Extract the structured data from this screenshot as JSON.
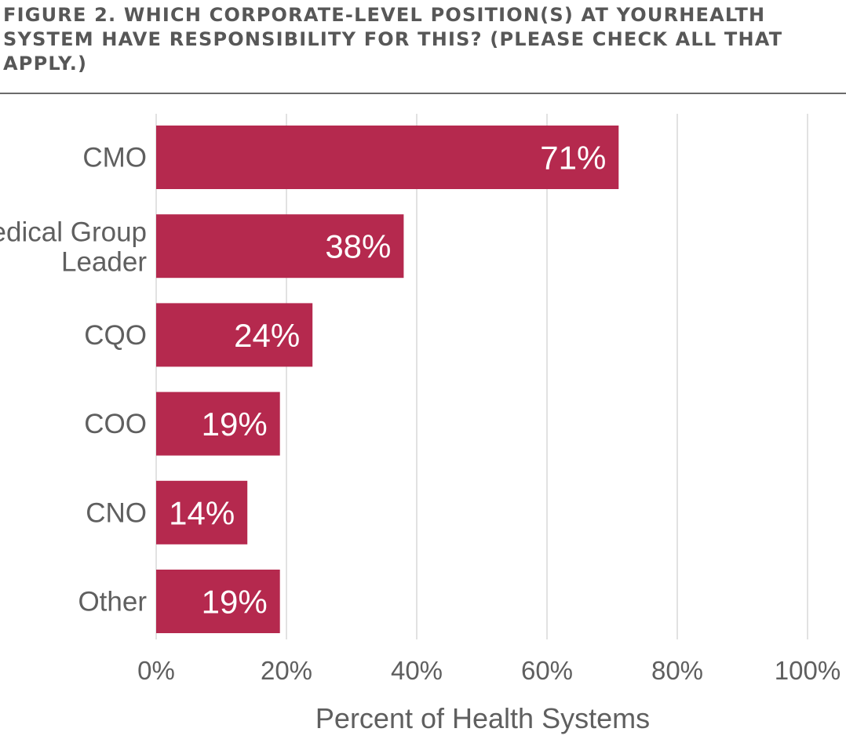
{
  "title": "Figure 2. Which corporate-level position(s) at yourhealth system have responsibility for this? (Please check all that apply.)",
  "chart_data": {
    "type": "bar",
    "orientation": "horizontal",
    "categories": [
      "CMO",
      "Medical Group Leader",
      "CQO",
      "COO",
      "CNO",
      "Other"
    ],
    "values": [
      71,
      38,
      24,
      19,
      14,
      19
    ],
    "value_labels": [
      "71%",
      "38%",
      "24%",
      "19%",
      "14%",
      "19%"
    ],
    "xlabel": "Percent of Health Systems",
    "ylabel": "",
    "xlim": [
      0,
      100
    ],
    "x_ticks": [
      0,
      20,
      40,
      60,
      80,
      100
    ],
    "x_tick_labels": [
      "0%",
      "20%",
      "40%",
      "60%",
      "80%",
      "100%"
    ],
    "grid": true,
    "legend": "none",
    "bar_color": "#b5294e",
    "grid_color": "#d9d9d9"
  }
}
